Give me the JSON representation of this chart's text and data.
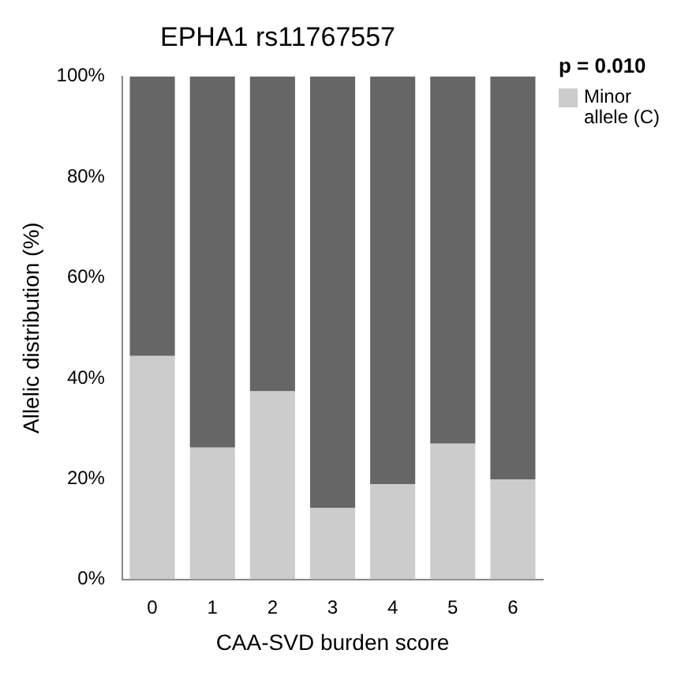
{
  "chart_data": {
    "type": "bar",
    "title": "EPHA1 rs11767557",
    "xlabel": "CAA-SVD burden score",
    "ylabel": "Allelic distribution (%)",
    "categories": [
      "0",
      "1",
      "2",
      "3",
      "4",
      "5",
      "6"
    ],
    "stacked": true,
    "series": [
      {
        "name": "Minor allele (C)",
        "color": "#cccccc",
        "values": [
          44.4,
          26.2,
          37.4,
          14.2,
          18.9,
          27.0,
          19.9
        ]
      },
      {
        "color": "#666666",
        "values": [
          55.6,
          73.8,
          62.6,
          85.8,
          81.1,
          73.0,
          80.1
        ]
      }
    ],
    "ylim": [
      0,
      100
    ],
    "yticks": [
      {
        "value": 0,
        "label": "0%"
      },
      {
        "value": 20,
        "label": "20%"
      },
      {
        "value": 40,
        "label": "40%"
      },
      {
        "value": 60,
        "label": "60%"
      },
      {
        "value": 80,
        "label": "80%"
      },
      {
        "value": 100,
        "label": "100%"
      }
    ],
    "grid": false,
    "legend": "top right",
    "annotations": [
      "p = 0.010"
    ]
  }
}
